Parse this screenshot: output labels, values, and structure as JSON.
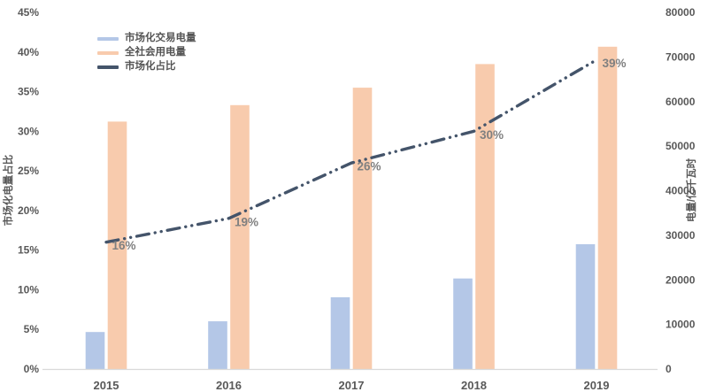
{
  "chart_data": {
    "type": "combo-bar-line",
    "categories": [
      "2015",
      "2016",
      "2017",
      "2018",
      "2019"
    ],
    "series": [
      {
        "name": "市场化交易电量",
        "type": "bar",
        "axis": "right",
        "color": "#b4c7e7",
        "values": [
          8300,
          10700,
          16100,
          20300,
          28000
        ]
      },
      {
        "name": "全社会用电量",
        "type": "bar",
        "axis": "right",
        "color": "#f8cbad",
        "values": [
          55500,
          59200,
          63100,
          68400,
          72300
        ]
      },
      {
        "name": "市场化占比",
        "type": "line",
        "axis": "left",
        "color": "#44546a",
        "dash_style": "long-dash-dot-dot",
        "values_pct": [
          16,
          19,
          26,
          30,
          39
        ],
        "point_labels": [
          "16%",
          "19%",
          "26%",
          "30%",
          "39%"
        ],
        "point_label_color": "#808080"
      }
    ],
    "left_axis": {
      "title": "市场化电量占比",
      "min": 0,
      "max": 45,
      "step": 5,
      "ticks": [
        "0%",
        "5%",
        "10%",
        "15%",
        "20%",
        "25%",
        "30%",
        "35%",
        "40%",
        "45%"
      ]
    },
    "right_axis": {
      "title": "电量/亿千瓦时",
      "min": 0,
      "max": 80000,
      "step": 10000,
      "ticks": [
        "0",
        "10000",
        "20000",
        "30000",
        "40000",
        "50000",
        "60000",
        "70000",
        "80000"
      ]
    },
    "legend": {
      "position": "top-left-inside",
      "items": [
        "市场化交易电量",
        "全社会用电量",
        "市场化占比"
      ]
    },
    "grid": false,
    "background": "#ffffff",
    "axis_line_color": "#d9d9d9",
    "tick_label_color": "#595959"
  }
}
